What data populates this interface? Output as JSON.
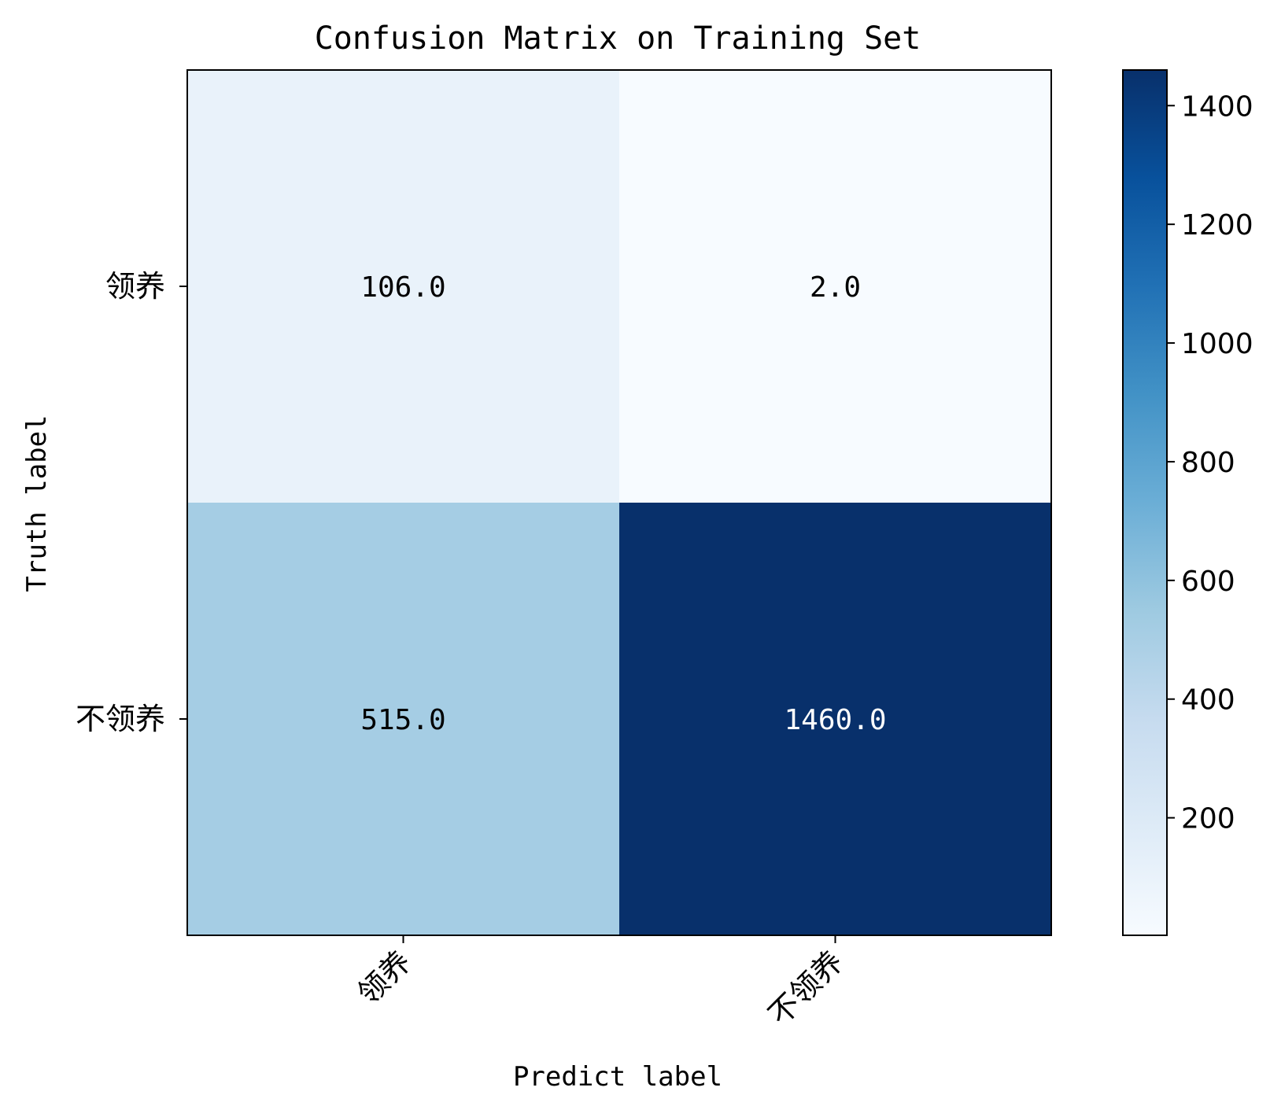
{
  "chart_data": {
    "type": "heatmap",
    "title": "Confusion Matrix on Training Set",
    "xlabel": "Predict label",
    "ylabel": "Truth label",
    "x_categories": [
      "领养",
      "不领养"
    ],
    "y_categories": [
      "领养",
      "不领养"
    ],
    "matrix": [
      [
        106.0,
        2.0
      ],
      [
        515.0,
        1460.0
      ]
    ],
    "cell_labels": [
      [
        "106.0",
        "2.0"
      ],
      [
        "515.0",
        "1460.0"
      ]
    ],
    "colormap": "Blues",
    "colorbar": {
      "range": [
        2,
        1460
      ],
      "ticks": [
        200,
        400,
        600,
        800,
        1000,
        1200,
        1400
      ],
      "tick_labels": [
        "200",
        "400",
        "600",
        "800",
        "1000",
        "1200",
        "1400"
      ]
    },
    "grid": false
  }
}
